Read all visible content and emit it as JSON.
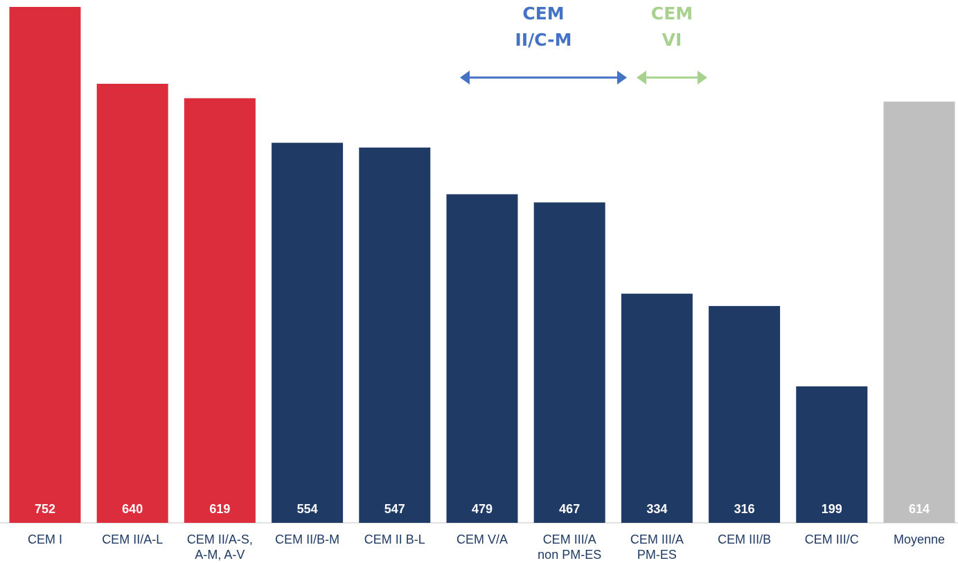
{
  "chart_data": {
    "type": "bar",
    "title": "",
    "xlabel": "",
    "ylabel": "",
    "ylim": [
      0,
      752
    ],
    "grid": false,
    "legend": "none",
    "categories": [
      [
        "CEM I"
      ],
      [
        "CEM II/A-L"
      ],
      [
        "CEM II/A-S,",
        "A-M, A-V"
      ],
      [
        "CEM II/B-M"
      ],
      [
        "CEM II B-L"
      ],
      [
        "CEM V/A"
      ],
      [
        "CEM III/A",
        "non PM-ES"
      ],
      [
        "CEM III/A",
        "PM-ES"
      ],
      [
        "CEM III/B"
      ],
      [
        "CEM III/C"
      ],
      [
        "Moyenne"
      ]
    ],
    "values": [
      752,
      640,
      619,
      554,
      547,
      479,
      467,
      334,
      316,
      199,
      614
    ],
    "value_labels": [
      "752",
      "640",
      "619",
      "554",
      "547",
      "479",
      "467",
      "334",
      "316",
      "199",
      "614"
    ],
    "bar_colors": [
      "#dc2d3c",
      "#dc2d3c",
      "#dc2d3c",
      "#1f3a64",
      "#1f3a64",
      "#1f3a64",
      "#1f3a64",
      "#1f3a64",
      "#1f3a64",
      "#1f3a64",
      "#bfbfbf"
    ],
    "label_color": "#1f3a64",
    "annotations": [
      {
        "lines": [
          "CEM",
          "II/C-M"
        ],
        "color": "#4472c4",
        "span_from_category": 5,
        "span_to_category": 7
      },
      {
        "lines": [
          "CEM",
          "VI"
        ],
        "color": "#a9d18e",
        "span_from_category": 7,
        "span_to_category": 8
      }
    ]
  }
}
